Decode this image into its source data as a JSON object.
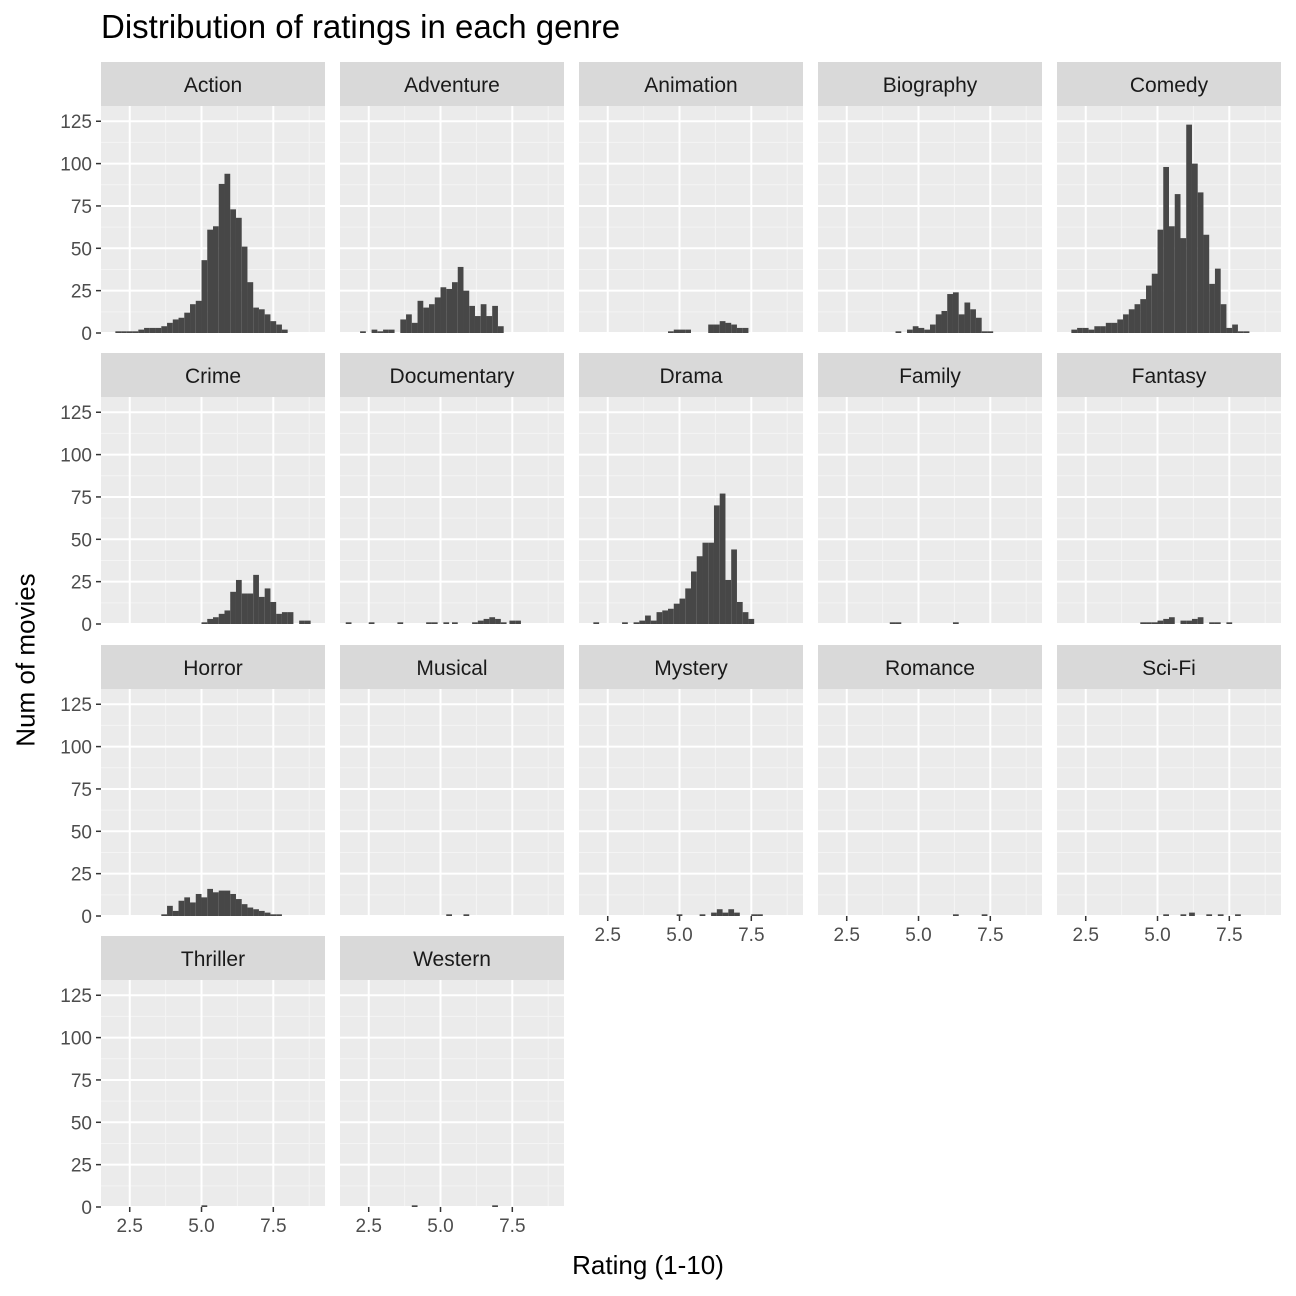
{
  "chart_data": {
    "type": "bar",
    "title": "Distribution of ratings in each genre",
    "xlabel": "Rating (1-10)",
    "ylabel": "Num of movies",
    "facet_layout": "wrap 5 columns",
    "bin_width": 0.2,
    "xlim": [
      1.5,
      9.3
    ],
    "ylim": [
      0,
      134
    ],
    "x_ticks": [
      2.5,
      5.0,
      7.5
    ],
    "x_tick_labels": [
      "2.5",
      "5.0",
      "7.5"
    ],
    "y_ticks": [
      0,
      25,
      50,
      75,
      100,
      125
    ],
    "y_tick_labels": [
      "0",
      "25",
      "50",
      "75",
      "100",
      "125"
    ],
    "grid": true,
    "panel_background": "#ebebeb",
    "strip_background": "#d9d9d9",
    "bar_color": "#474747",
    "panels": [
      {
        "genre": "Action",
        "bins": [
          [
            2.0,
            1
          ],
          [
            2.2,
            1
          ],
          [
            2.4,
            1
          ],
          [
            2.6,
            1
          ],
          [
            2.8,
            2
          ],
          [
            3.0,
            3
          ],
          [
            3.2,
            3
          ],
          [
            3.4,
            3
          ],
          [
            3.6,
            4
          ],
          [
            3.8,
            6
          ],
          [
            4.0,
            8
          ],
          [
            4.2,
            9
          ],
          [
            4.4,
            12
          ],
          [
            4.6,
            17
          ],
          [
            4.8,
            19
          ],
          [
            5.0,
            43
          ],
          [
            5.2,
            61
          ],
          [
            5.4,
            63
          ],
          [
            5.6,
            88
          ],
          [
            5.8,
            94
          ],
          [
            6.0,
            73
          ],
          [
            6.2,
            68
          ],
          [
            6.4,
            51
          ],
          [
            6.6,
            30
          ],
          [
            6.8,
            15
          ],
          [
            7.0,
            14
          ],
          [
            7.2,
            11
          ],
          [
            7.4,
            7
          ],
          [
            7.6,
            5
          ],
          [
            7.8,
            2
          ]
        ]
      },
      {
        "genre": "Adventure",
        "bins": [
          [
            2.2,
            1
          ],
          [
            2.6,
            2
          ],
          [
            2.8,
            1
          ],
          [
            3.0,
            2
          ],
          [
            3.2,
            2
          ],
          [
            3.6,
            8
          ],
          [
            3.8,
            11
          ],
          [
            4.0,
            6
          ],
          [
            4.2,
            19
          ],
          [
            4.4,
            15
          ],
          [
            4.6,
            17
          ],
          [
            4.8,
            21
          ],
          [
            5.0,
            27
          ],
          [
            5.2,
            26
          ],
          [
            5.4,
            30
          ],
          [
            5.6,
            39
          ],
          [
            5.8,
            25
          ],
          [
            6.0,
            16
          ],
          [
            6.2,
            10
          ],
          [
            6.4,
            17
          ],
          [
            6.6,
            10
          ],
          [
            6.8,
            16
          ],
          [
            7.0,
            4
          ]
        ]
      },
      {
        "genre": "Animation",
        "bins": [
          [
            4.6,
            1
          ],
          [
            4.8,
            2
          ],
          [
            5.0,
            2
          ],
          [
            5.2,
            2
          ],
          [
            6.0,
            5
          ],
          [
            6.2,
            5
          ],
          [
            6.4,
            7
          ],
          [
            6.6,
            6
          ],
          [
            6.8,
            5
          ],
          [
            7.0,
            3
          ],
          [
            7.2,
            3
          ]
        ]
      },
      {
        "genre": "Biography",
        "bins": [
          [
            4.2,
            1
          ],
          [
            4.6,
            2
          ],
          [
            4.8,
            4
          ],
          [
            5.0,
            3
          ],
          [
            5.2,
            2
          ],
          [
            5.4,
            5
          ],
          [
            5.6,
            11
          ],
          [
            5.8,
            13
          ],
          [
            6.0,
            23
          ],
          [
            6.2,
            24
          ],
          [
            6.4,
            11
          ],
          [
            6.6,
            18
          ],
          [
            6.8,
            14
          ],
          [
            7.0,
            9
          ],
          [
            7.2,
            1
          ],
          [
            7.4,
            1
          ]
        ]
      },
      {
        "genre": "Comedy",
        "bins": [
          [
            2.0,
            2
          ],
          [
            2.2,
            3
          ],
          [
            2.4,
            3
          ],
          [
            2.6,
            2
          ],
          [
            2.8,
            4
          ],
          [
            3.0,
            4
          ],
          [
            3.2,
            6
          ],
          [
            3.4,
            6
          ],
          [
            3.6,
            8
          ],
          [
            3.8,
            11
          ],
          [
            4.0,
            14
          ],
          [
            4.2,
            17
          ],
          [
            4.4,
            20
          ],
          [
            4.6,
            28
          ],
          [
            4.8,
            35
          ],
          [
            5.0,
            61
          ],
          [
            5.2,
            98
          ],
          [
            5.4,
            63
          ],
          [
            5.6,
            82
          ],
          [
            5.8,
            56
          ],
          [
            6.0,
            123
          ],
          [
            6.2,
            100
          ],
          [
            6.4,
            83
          ],
          [
            6.6,
            58
          ],
          [
            6.8,
            29
          ],
          [
            7.0,
            38
          ],
          [
            7.2,
            17
          ],
          [
            7.4,
            3
          ],
          [
            7.6,
            5
          ],
          [
            7.8,
            1
          ],
          [
            8.0,
            1
          ]
        ]
      },
      {
        "genre": "Crime",
        "bins": [
          [
            5.0,
            1
          ],
          [
            5.2,
            3
          ],
          [
            5.4,
            4
          ],
          [
            5.6,
            6
          ],
          [
            5.8,
            8
          ],
          [
            6.0,
            19
          ],
          [
            6.2,
            26
          ],
          [
            6.4,
            18
          ],
          [
            6.6,
            18
          ],
          [
            6.8,
            29
          ],
          [
            7.0,
            16
          ],
          [
            7.2,
            21
          ],
          [
            7.4,
            13
          ],
          [
            7.6,
            6
          ],
          [
            7.8,
            7
          ],
          [
            8.0,
            7
          ],
          [
            8.4,
            2
          ],
          [
            8.6,
            2
          ]
        ]
      },
      {
        "genre": "Documentary",
        "bins": [
          [
            1.7,
            1
          ],
          [
            2.5,
            1
          ],
          [
            3.5,
            1
          ],
          [
            4.5,
            1
          ],
          [
            4.7,
            1
          ],
          [
            5.1,
            1
          ],
          [
            5.4,
            1
          ],
          [
            6.1,
            1
          ],
          [
            6.3,
            2
          ],
          [
            6.5,
            3
          ],
          [
            6.7,
            4
          ],
          [
            6.9,
            3
          ],
          [
            7.1,
            1
          ],
          [
            7.4,
            2
          ],
          [
            7.6,
            2
          ]
        ]
      },
      {
        "genre": "Drama",
        "bins": [
          [
            2.0,
            1
          ],
          [
            3.0,
            1
          ],
          [
            3.4,
            1
          ],
          [
            3.6,
            2
          ],
          [
            3.8,
            5
          ],
          [
            4.0,
            2
          ],
          [
            4.2,
            7
          ],
          [
            4.4,
            8
          ],
          [
            4.6,
            9
          ],
          [
            4.8,
            12
          ],
          [
            5.0,
            15
          ],
          [
            5.2,
            21
          ],
          [
            5.4,
            31
          ],
          [
            5.6,
            40
          ],
          [
            5.8,
            48
          ],
          [
            6.0,
            48
          ],
          [
            6.2,
            70
          ],
          [
            6.4,
            77
          ],
          [
            6.6,
            26
          ],
          [
            6.8,
            44
          ],
          [
            7.0,
            13
          ],
          [
            7.2,
            7
          ],
          [
            7.4,
            3
          ]
        ]
      },
      {
        "genre": "Family",
        "bins": [
          [
            4.0,
            1
          ],
          [
            4.2,
            1
          ],
          [
            6.2,
            1
          ]
        ]
      },
      {
        "genre": "Fantasy",
        "bins": [
          [
            4.4,
            1
          ],
          [
            4.6,
            1
          ],
          [
            4.8,
            1
          ],
          [
            5.0,
            2
          ],
          [
            5.2,
            3
          ],
          [
            5.4,
            4
          ],
          [
            5.8,
            2
          ],
          [
            6.0,
            2
          ],
          [
            6.2,
            3
          ],
          [
            6.4,
            4
          ],
          [
            6.8,
            1
          ],
          [
            7.0,
            1
          ],
          [
            7.4,
            1
          ]
        ]
      },
      {
        "genre": "Horror",
        "bins": [
          [
            3.6,
            1
          ],
          [
            3.8,
            6
          ],
          [
            4.0,
            3
          ],
          [
            4.2,
            9
          ],
          [
            4.4,
            11
          ],
          [
            4.6,
            8
          ],
          [
            4.8,
            13
          ],
          [
            5.0,
            11
          ],
          [
            5.2,
            16
          ],
          [
            5.4,
            14
          ],
          [
            5.6,
            15
          ],
          [
            5.8,
            15
          ],
          [
            6.0,
            13
          ],
          [
            6.2,
            10
          ],
          [
            6.4,
            7
          ],
          [
            6.6,
            5
          ],
          [
            6.8,
            4
          ],
          [
            7.0,
            3
          ],
          [
            7.2,
            2
          ],
          [
            7.4,
            1
          ],
          [
            7.6,
            1
          ]
        ]
      },
      {
        "genre": "Musical",
        "bins": [
          [
            5.2,
            1
          ],
          [
            5.8,
            1
          ]
        ]
      },
      {
        "genre": "Mystery",
        "bins": [
          [
            4.9,
            1
          ],
          [
            5.7,
            1
          ],
          [
            6.1,
            2
          ],
          [
            6.3,
            4
          ],
          [
            6.5,
            2
          ],
          [
            6.7,
            4
          ],
          [
            6.9,
            2
          ],
          [
            7.5,
            1
          ],
          [
            7.7,
            1
          ]
        ]
      },
      {
        "genre": "Romance",
        "bins": [
          [
            6.2,
            1
          ],
          [
            7.2,
            1
          ]
        ]
      },
      {
        "genre": "Sci-Fi",
        "bins": [
          [
            5.2,
            1
          ],
          [
            5.8,
            1
          ],
          [
            6.1,
            2
          ],
          [
            6.7,
            1
          ],
          [
            7.1,
            1
          ],
          [
            7.7,
            1
          ]
        ]
      },
      {
        "genre": "Thriller",
        "bins": [
          [
            5.0,
            1
          ]
        ]
      },
      {
        "genre": "Western",
        "bins": [
          [
            4.0,
            1
          ],
          [
            6.8,
            1
          ]
        ]
      }
    ]
  }
}
